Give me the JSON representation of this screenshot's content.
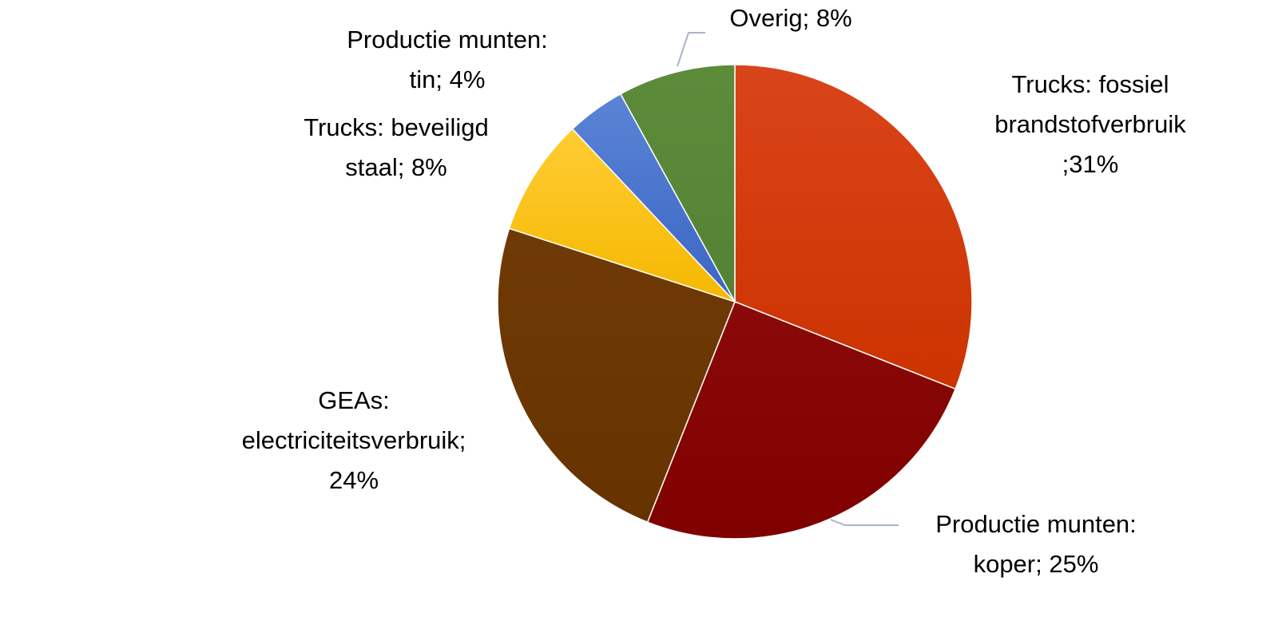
{
  "chart_data": {
    "type": "pie",
    "title": "",
    "start_angle_deg": 0,
    "direction": "clockwise",
    "legend": "none",
    "slices": [
      {
        "label": "Trucks: fossiel brandstofverbruik",
        "value": 31,
        "display": [
          "Trucks: fossiel",
          "brandstofverbruik",
          ";31%"
        ],
        "color": "#cc3300",
        "color_light": "#d9441a",
        "leader": false
      },
      {
        "label": "Productie munten: koper",
        "value": 25,
        "display": [
          "Productie munten:",
          "koper; 25%"
        ],
        "color": "#800000",
        "color_light": "#8a0a0a",
        "leader": true
      },
      {
        "label": "GEAs: electriciteitsverbruik",
        "value": 24,
        "display": [
          "GEAs:",
          "electriciteitsverbruik;",
          "24%"
        ],
        "color": "#663300",
        "color_light": "#6f3a05",
        "leader": false
      },
      {
        "label": "Trucks: beveiligd staal",
        "value": 8,
        "display": [
          "Trucks: beveiligd",
          "staal; 8%"
        ],
        "color": "#f5b800",
        "color_light": "#ffcc33",
        "leader": false
      },
      {
        "label": "Productie munten: tin",
        "value": 4,
        "display": [
          "Productie munten:",
          "tin; 4%"
        ],
        "color": "#3a66c4",
        "color_light": "#5b84d6",
        "leader": false
      },
      {
        "label": "Overig",
        "value": 8,
        "display": [
          "Overig; 8%"
        ],
        "color": "#548235",
        "color_light": "#5c8c3a",
        "leader": true
      }
    ]
  }
}
